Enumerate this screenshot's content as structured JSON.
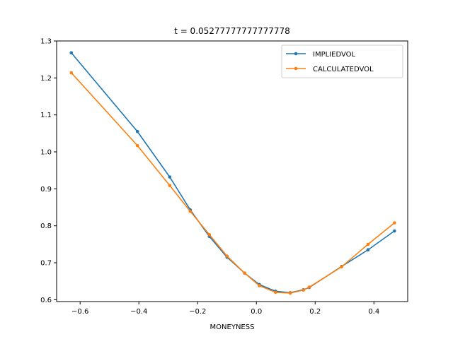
{
  "chart_data": {
    "type": "line",
    "title": "t = 0.05277777777777778",
    "xlabel": "MONEYNESS",
    "ylabel": "",
    "xlim": [
      -0.68,
      0.515
    ],
    "ylim": [
      0.595,
      1.3
    ],
    "xticks": [
      -0.6,
      -0.4,
      -0.2,
      0.0,
      0.2,
      0.4
    ],
    "xtick_labels": [
      "−0.6",
      "−0.4",
      "−0.2",
      "0.0",
      "0.2",
      "0.4"
    ],
    "yticks": [
      0.6,
      0.7,
      0.8,
      0.9,
      1.0,
      1.1,
      1.2,
      1.3
    ],
    "ytick_labels": [
      "0.6",
      "0.7",
      "0.8",
      "0.9",
      "1.0",
      "1.1",
      "1.2",
      "1.3"
    ],
    "grid": false,
    "legend_position": "top-right",
    "series": [
      {
        "name": "IMPLIEDVOL",
        "color": "#1f77b4",
        "x": [
          -0.63,
          -0.405,
          -0.295,
          -0.225,
          -0.16,
          -0.1,
          -0.04,
          0.01,
          0.065,
          0.115,
          0.16,
          0.18,
          0.29,
          0.38,
          0.47
        ],
        "y": [
          1.268,
          1.055,
          0.932,
          0.843,
          0.771,
          0.715,
          0.672,
          0.641,
          0.623,
          0.619,
          0.627,
          0.633,
          0.69,
          0.735,
          0.786
        ]
      },
      {
        "name": "CALCULATEDVOL",
        "color": "#ff7f0e",
        "x": [
          -0.63,
          -0.405,
          -0.295,
          -0.225,
          -0.16,
          -0.1,
          -0.04,
          0.01,
          0.065,
          0.115,
          0.16,
          0.18,
          0.29,
          0.38,
          0.47
        ],
        "y": [
          1.214,
          1.017,
          0.909,
          0.839,
          0.776,
          0.718,
          0.672,
          0.638,
          0.62,
          0.618,
          0.626,
          0.634,
          0.689,
          0.75,
          0.808
        ]
      }
    ]
  }
}
